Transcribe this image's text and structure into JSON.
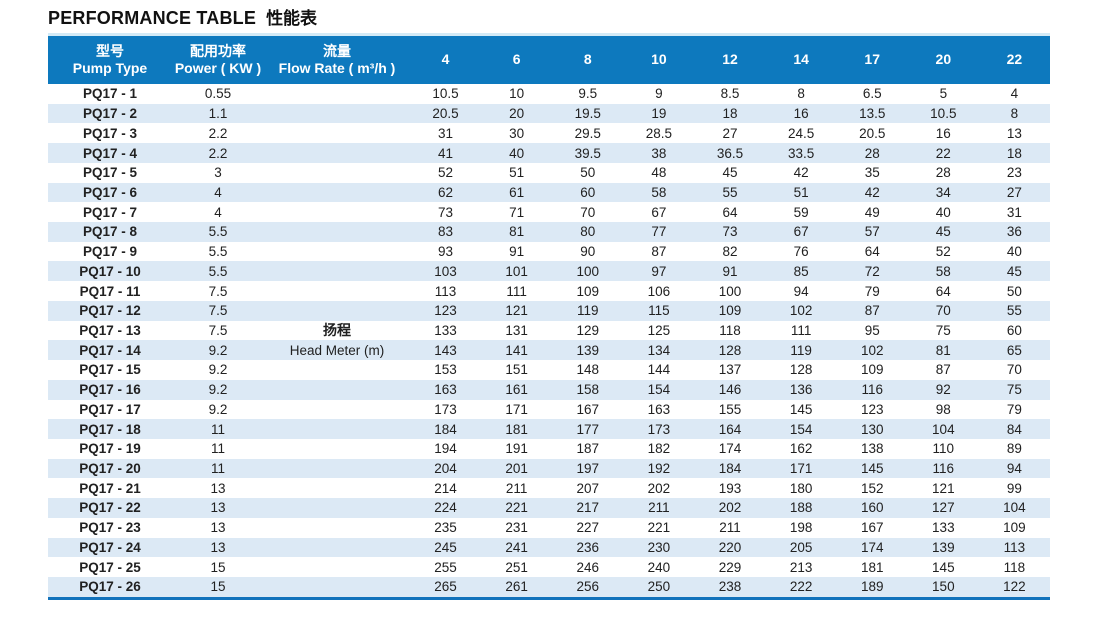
{
  "title": {
    "en": "PERFORMANCE TABLE",
    "zh": "性能表"
  },
  "colors": {
    "header_blue": "#0d79be",
    "header_top_line": "#d3eaf6",
    "row_alt_blue": "#dce9f5",
    "bottom_line_blue": "#1272bb",
    "header_text": "#ffffff",
    "body_text": "#212121"
  },
  "table": {
    "header": {
      "pump_type_zh": "型号",
      "pump_type_en": "Pump Type",
      "power_zh": "配用功率",
      "power_en": "Power ( KW )",
      "flow_zh": "流量",
      "flow_en": "Flow Rate ( m³/h )",
      "flow_columns": [
        "4",
        "6",
        "8",
        "10",
        "12",
        "14",
        "17",
        "20",
        "22"
      ]
    },
    "head_meter_label": {
      "zh": "扬程",
      "en": "Head Meter (m)",
      "zh_row_index": 12,
      "en_row_index": 13
    },
    "rows": [
      {
        "type": "PQ17 - 1",
        "power": "0.55",
        "values": [
          "10.5",
          "10",
          "9.5",
          "9",
          "8.5",
          "8",
          "6.5",
          "5",
          "4"
        ]
      },
      {
        "type": "PQ17 - 2",
        "power": "1.1",
        "values": [
          "20.5",
          "20",
          "19.5",
          "19",
          "18",
          "16",
          "13.5",
          "10.5",
          "8"
        ]
      },
      {
        "type": "PQ17 - 3",
        "power": "2.2",
        "values": [
          "31",
          "30",
          "29.5",
          "28.5",
          "27",
          "24.5",
          "20.5",
          "16",
          "13"
        ]
      },
      {
        "type": "PQ17 - 4",
        "power": "2.2",
        "values": [
          "41",
          "40",
          "39.5",
          "38",
          "36.5",
          "33.5",
          "28",
          "22",
          "18"
        ]
      },
      {
        "type": "PQ17 - 5",
        "power": "3",
        "values": [
          "52",
          "51",
          "50",
          "48",
          "45",
          "42",
          "35",
          "28",
          "23"
        ]
      },
      {
        "type": "PQ17 - 6",
        "power": "4",
        "values": [
          "62",
          "61",
          "60",
          "58",
          "55",
          "51",
          "42",
          "34",
          "27"
        ]
      },
      {
        "type": "PQ17 - 7",
        "power": "4",
        "values": [
          "73",
          "71",
          "70",
          "67",
          "64",
          "59",
          "49",
          "40",
          "31"
        ]
      },
      {
        "type": "PQ17 - 8",
        "power": "5.5",
        "values": [
          "83",
          "81",
          "80",
          "77",
          "73",
          "67",
          "57",
          "45",
          "36"
        ]
      },
      {
        "type": "PQ17 - 9",
        "power": "5.5",
        "values": [
          "93",
          "91",
          "90",
          "87",
          "82",
          "76",
          "64",
          "52",
          "40"
        ]
      },
      {
        "type": "PQ17 - 10",
        "power": "5.5",
        "values": [
          "103",
          "101",
          "100",
          "97",
          "91",
          "85",
          "72",
          "58",
          "45"
        ]
      },
      {
        "type": "PQ17 - 11",
        "power": "7.5",
        "values": [
          "113",
          "111",
          "109",
          "106",
          "100",
          "94",
          "79",
          "64",
          "50"
        ]
      },
      {
        "type": "PQ17 - 12",
        "power": "7.5",
        "values": [
          "123",
          "121",
          "119",
          "115",
          "109",
          "102",
          "87",
          "70",
          "55"
        ]
      },
      {
        "type": "PQ17 - 13",
        "power": "7.5",
        "values": [
          "133",
          "131",
          "129",
          "125",
          "118",
          "111",
          "95",
          "75",
          "60"
        ]
      },
      {
        "type": "PQ17 - 14",
        "power": "9.2",
        "values": [
          "143",
          "141",
          "139",
          "134",
          "128",
          "119",
          "102",
          "81",
          "65"
        ]
      },
      {
        "type": "PQ17 - 15",
        "power": "9.2",
        "values": [
          "153",
          "151",
          "148",
          "144",
          "137",
          "128",
          "109",
          "87",
          "70"
        ]
      },
      {
        "type": "PQ17 - 16",
        "power": "9.2",
        "values": [
          "163",
          "161",
          "158",
          "154",
          "146",
          "136",
          "116",
          "92",
          "75"
        ]
      },
      {
        "type": "PQ17 - 17",
        "power": "9.2",
        "values": [
          "173",
          "171",
          "167",
          "163",
          "155",
          "145",
          "123",
          "98",
          "79"
        ]
      },
      {
        "type": "PQ17 - 18",
        "power": "11",
        "values": [
          "184",
          "181",
          "177",
          "173",
          "164",
          "154",
          "130",
          "104",
          "84"
        ]
      },
      {
        "type": "PQ17 - 19",
        "power": "11",
        "values": [
          "194",
          "191",
          "187",
          "182",
          "174",
          "162",
          "138",
          "110",
          "89"
        ]
      },
      {
        "type": "PQ17 - 20",
        "power": "11",
        "values": [
          "204",
          "201",
          "197",
          "192",
          "184",
          "171",
          "145",
          "116",
          "94"
        ]
      },
      {
        "type": "PQ17 - 21",
        "power": "13",
        "values": [
          "214",
          "211",
          "207",
          "202",
          "193",
          "180",
          "152",
          "121",
          "99"
        ]
      },
      {
        "type": "PQ17 - 22",
        "power": "13",
        "values": [
          "224",
          "221",
          "217",
          "211",
          "202",
          "188",
          "160",
          "127",
          "104"
        ]
      },
      {
        "type": "PQ17 - 23",
        "power": "13",
        "values": [
          "235",
          "231",
          "227",
          "221",
          "211",
          "198",
          "167",
          "133",
          "109"
        ]
      },
      {
        "type": "PQ17 - 24",
        "power": "13",
        "values": [
          "245",
          "241",
          "236",
          "230",
          "220",
          "205",
          "174",
          "139",
          "113"
        ]
      },
      {
        "type": "PQ17 - 25",
        "power": "15",
        "values": [
          "255",
          "251",
          "246",
          "240",
          "229",
          "213",
          "181",
          "145",
          "118"
        ]
      },
      {
        "type": "PQ17 - 26",
        "power": "15",
        "values": [
          "265",
          "261",
          "256",
          "250",
          "238",
          "222",
          "189",
          "150",
          "122"
        ]
      }
    ]
  }
}
